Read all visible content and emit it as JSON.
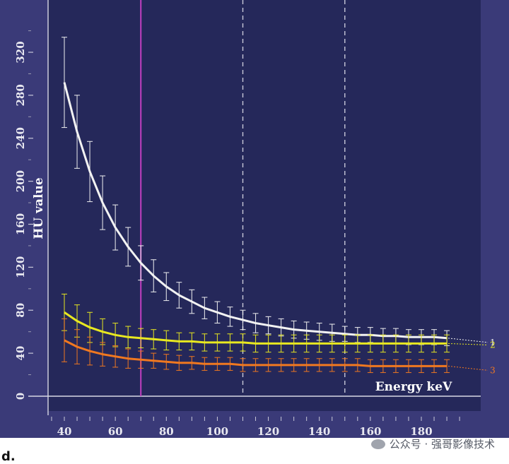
{
  "panel_label": "d.",
  "watermark": "公众号 · 强哥影像技术",
  "chart_data": {
    "type": "line",
    "xlabel": "Energy keV",
    "ylabel": "HU value",
    "xlim": [
      30,
      200
    ],
    "ylim": [
      -10,
      360
    ],
    "x_ticks": [
      40,
      60,
      80,
      100,
      120,
      140,
      160,
      180
    ],
    "y_ticks": [
      0,
      40,
      80,
      120,
      160,
      200,
      240,
      280,
      320
    ],
    "x_minor_ticks": [
      35,
      40,
      45,
      50,
      55,
      60,
      65,
      70,
      75,
      80,
      85,
      90,
      95,
      100,
      105,
      110,
      115,
      120,
      125,
      130,
      135,
      140,
      145,
      150,
      155,
      160,
      165,
      170,
      175,
      180,
      185,
      190,
      195
    ],
    "reference_lines": [
      {
        "x": 70,
        "style": "solid",
        "color": "#c040c0"
      },
      {
        "x": 110,
        "style": "dashed",
        "color": "#c8c8d8"
      },
      {
        "x": 150,
        "style": "dashed",
        "color": "#c8c8d8"
      }
    ],
    "x": [
      40,
      45,
      50,
      55,
      60,
      65,
      70,
      75,
      80,
      85,
      90,
      95,
      100,
      105,
      110,
      115,
      120,
      125,
      130,
      135,
      140,
      145,
      150,
      155,
      160,
      165,
      170,
      175,
      180,
      185,
      190
    ],
    "series": [
      {
        "label": "1",
        "color": "#f2f2f2",
        "values": [
          292,
          246,
          209,
          180,
          157,
          139,
          124,
          112,
          102,
          94,
          88,
          82,
          78,
          74,
          71,
          68,
          66,
          64,
          62,
          61,
          60,
          59,
          58,
          57,
          57,
          56,
          56,
          55,
          55,
          55,
          54
        ],
        "errors": [
          42,
          34,
          28,
          25,
          21,
          18,
          16,
          15,
          13,
          12,
          11,
          10,
          10,
          9,
          9,
          9,
          8,
          8,
          8,
          8,
          8,
          8,
          7,
          7,
          7,
          7,
          7,
          7,
          7,
          7,
          7
        ]
      },
      {
        "label": "2",
        "color": "#e8e820",
        "values": [
          78,
          70,
          64,
          60,
          57,
          55,
          54,
          53,
          52,
          51,
          51,
          50,
          50,
          50,
          50,
          49,
          49,
          49,
          49,
          49,
          49,
          49,
          49,
          49,
          49,
          49,
          49,
          49,
          49,
          49,
          49
        ],
        "errors": [
          17,
          15,
          14,
          12,
          11,
          10,
          9,
          9,
          9,
          8,
          8,
          8,
          8,
          8,
          8,
          8,
          8,
          8,
          8,
          8,
          8,
          8,
          8,
          8,
          8,
          8,
          8,
          8,
          8,
          8,
          8
        ]
      },
      {
        "label": "3",
        "color": "#f07820",
        "values": [
          52,
          46,
          42,
          39,
          37,
          35,
          34,
          33,
          32,
          31,
          31,
          30,
          30,
          30,
          29,
          29,
          29,
          29,
          29,
          29,
          29,
          29,
          29,
          29,
          28,
          28,
          28,
          28,
          28,
          28,
          28
        ],
        "errors": [
          20,
          16,
          13,
          11,
          10,
          9,
          8,
          7,
          7,
          7,
          6,
          6,
          6,
          6,
          6,
          6,
          6,
          6,
          6,
          6,
          6,
          6,
          6,
          6,
          6,
          6,
          6,
          6,
          6,
          6,
          6
        ]
      }
    ]
  }
}
